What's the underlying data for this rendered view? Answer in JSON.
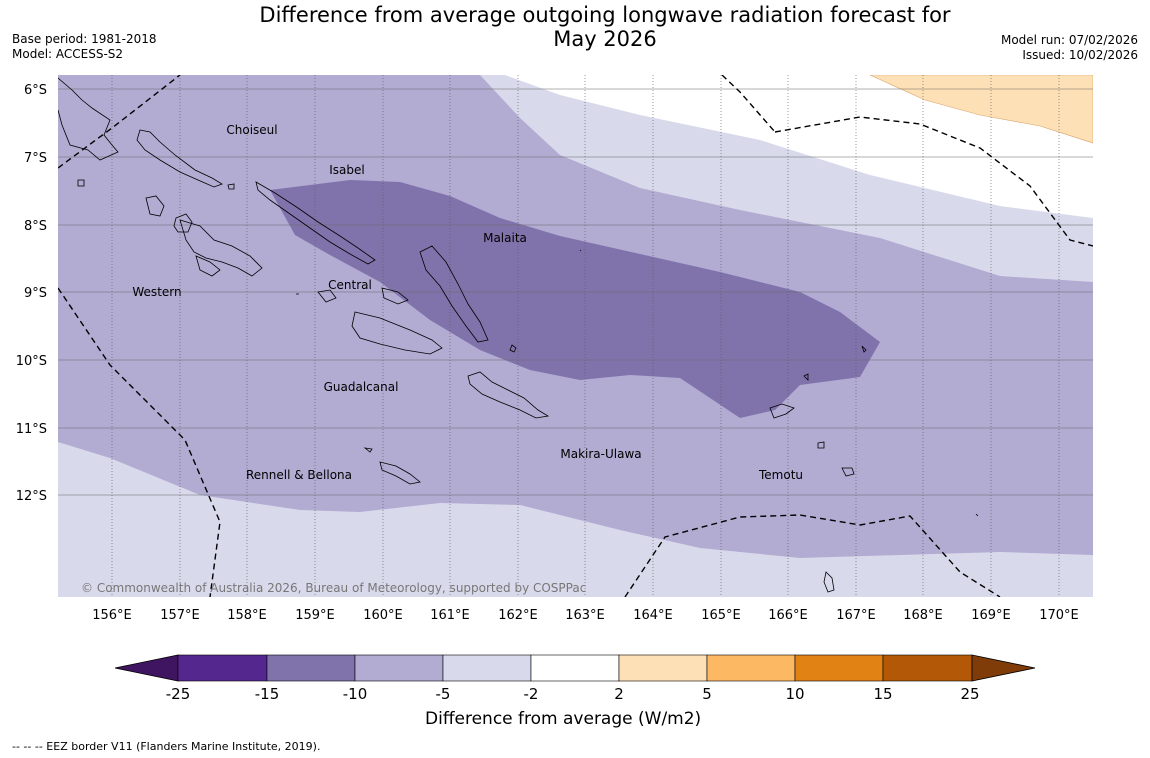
{
  "title": {
    "line1": "Difference from average outgoing longwave radiation forecast for",
    "line2": "May 2026"
  },
  "meta": {
    "base_period": "Base period: 1981-2018",
    "model": "Model: ACCESS-S2",
    "model_run": "Model run: 07/02/2026",
    "issued": "Issued: 10/02/2026"
  },
  "map": {
    "lat_labels": [
      "6°S",
      "7°S",
      "8°S",
      "9°S",
      "10°S",
      "11°S",
      "12°S"
    ],
    "lon_labels": [
      "156°E",
      "157°E",
      "158°E",
      "159°E",
      "160°E",
      "161°E",
      "162°E",
      "163°E",
      "164°E",
      "165°E",
      "166°E",
      "167°E",
      "168°E",
      "169°E",
      "170°E"
    ],
    "provinces": [
      "Choiseul",
      "Isabel",
      "Malaita",
      "Western",
      "Central",
      "Guadalcanal",
      "Makira-Ulawa",
      "Rennell & Bellona",
      "Temotu"
    ],
    "copyright": "© Commonwealth of Australia 2026, Bureau of Meteorology, supported by COSPPac"
  },
  "colorbar": {
    "ticks": [
      "-25",
      "-15",
      "-10",
      "-5",
      "-2",
      "2",
      "5",
      "10",
      "15",
      "25"
    ],
    "colors": [
      "#3f1561",
      "#54278f",
      "#8073ac",
      "#b2abd2",
      "#d8daeb",
      "#ffffff",
      "#fee0b6",
      "#fdb863",
      "#e08214",
      "#b35806",
      "#7f3b08"
    ],
    "label": "Difference from average (W/m2)"
  },
  "legend_note": "--  --  -- EEZ border V11 (Flanders Marine Institute, 2019)."
}
